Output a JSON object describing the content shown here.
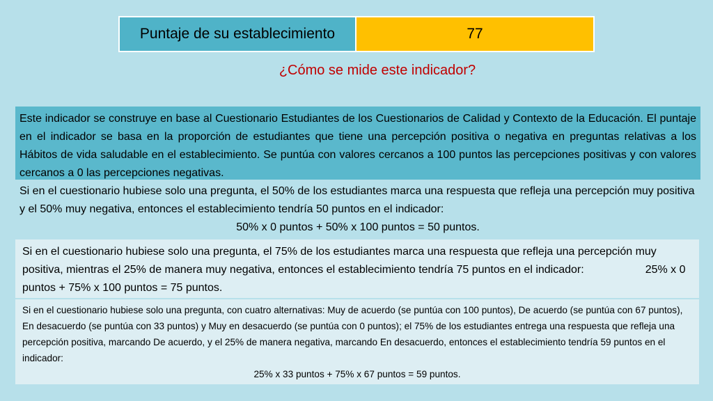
{
  "score": {
    "label": "Puntaje de su establecimiento",
    "value": "77"
  },
  "question": "¿Cómo  se mide este indicador?",
  "paragraphs": {
    "p1": "Este  indicador se  construye en  base al Cuestionario Estudiantes de los Cuestionarios de Calidad y Contexto de la Educación. El puntaje en  el  indicador se  basa en  la proporción de estudiantes que tiene una percepción positiva o negativa en  preguntas relativas a los Hábitos de vida saludable en  el establecimiento. Se puntúa con valores cercanos a 100  puntos las  percepciones positivas y con  valores cercanos a 0 las percepciones negativas.",
    "p2_text": "Si en  el cuestionario hubiese solo  una pregunta, el 50% de  los  estudiantes marca una respuesta que refleja una percepción muy  positiva y el 50% muy  negativa, entonces el establecimiento tendría 50 puntos en el indicador:",
    "p2_formula": "50% x 0 puntos + 50% x 100 puntos = 50 puntos.",
    "p3_text": " Si en  el cuestionario hubiese solo  una pregunta, el 75% de  los  estudiantes marca una respuesta que refleja una percepción muy  positiva, mientras el 25% de manera muy negativa, entonces el establecimiento tendría 75 puntos en el indicador:",
    "p3_formula": "25% x 0 puntos + 75% x 100 puntos = 75 puntos.",
    "p4_text": "Si en  el cuestionario hubiese solo  una pregunta, con  cuatro alternativas: Muy de acuerdo (se puntúa con 100 puntos), De acuerdo (se puntúa con 67 puntos), En desacuerdo (se puntúa con 33 puntos) y Muy en desacuerdo (se puntúa con 0 puntos); el 75% de los estudiantes entrega una respuesta  que refleja una percepción positiva, marcando De acuerdo, y el 25%  de  manera negativa, marcando En desacuerdo, entonces  el establecimiento tendría 59 puntos en el indicador:",
    "p4_formula": "25% x 33 puntos + 75% x 67 puntos = 59 puntos."
  },
  "colors": {
    "background": "#b7e0ea",
    "label_cell": "#4fb3c8",
    "value_cell": "#ffc000",
    "question_text": "#c00000",
    "highlight_block": "#5ab8cc",
    "light_block": "#ddeef3"
  }
}
